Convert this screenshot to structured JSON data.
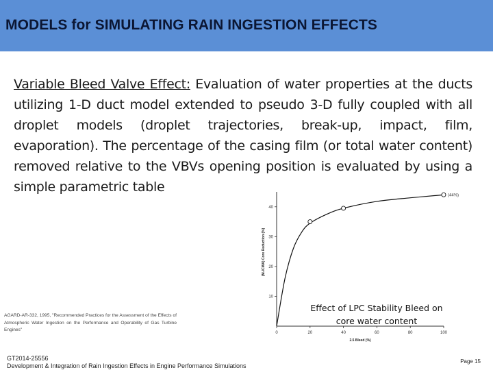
{
  "header": {
    "title": "MODELS for SIMULATING RAIN INGESTION EFFECTS",
    "bg_color": "#5b8fd6"
  },
  "body": {
    "lead": "Variable Bleed Valve Effect:",
    "text": " Evaluation of water properties at the ducts utilizing 1-D duct model extended to pseudo 3-D fully coupled with all droplet models (droplet trajectories, break-up, impact, film, evaporation). The percentage of the casing film (or total water content) removed relative to the VBVs opening position is evaluated by using a simple parametric table"
  },
  "chart_data": {
    "type": "line",
    "title": "",
    "caption_line1": "Effect of LPC Stability Bleed on",
    "caption_line2": "core water content",
    "xlabel": "2.5 Bleed (%)",
    "ylabel": "(M₀/CWA) Core Reduction (%)",
    "xlim": [
      0,
      100
    ],
    "ylim": [
      0,
      45
    ],
    "x_ticks": [
      "0",
      "20",
      "40",
      "60",
      "80",
      "100"
    ],
    "y_ticks": [
      "10",
      "20",
      "30",
      "40"
    ],
    "points": [
      {
        "x": 20,
        "y": 35
      },
      {
        "x": 40,
        "y": 39.5
      },
      {
        "x": 100,
        "y": 44
      }
    ],
    "curve": [
      [
        0,
        0
      ],
      [
        5,
        16
      ],
      [
        10,
        26
      ],
      [
        15,
        31.5
      ],
      [
        20,
        34.5
      ],
      [
        30,
        37.5
      ],
      [
        40,
        39.5
      ],
      [
        60,
        41.8
      ],
      [
        80,
        43
      ],
      [
        100,
        44
      ]
    ],
    "annotation": "(44%)"
  },
  "reference": "AGARD-AR-332, 1995, \"Recommended Practices for the Assessment of the Effects of Atmospheric Water Ingestion on the Performance and Operability of Gas Turbine Engines\"",
  "footer": {
    "line1": "GT2014-25556",
    "line2": "Development & Integration of Rain Ingestion Effects in Engine Performance Simulations",
    "page": "Page 15"
  }
}
